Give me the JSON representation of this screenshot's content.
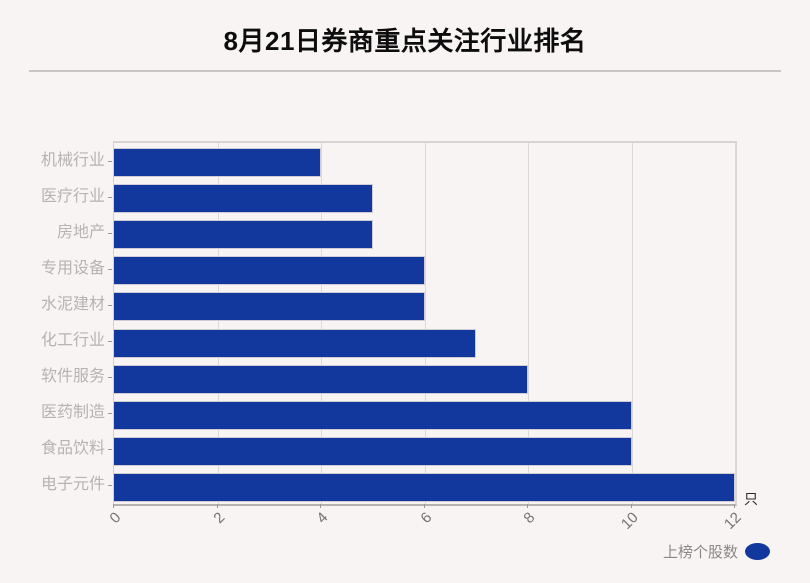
{
  "page": {
    "background_color": "#f7f4f3"
  },
  "chart_data": {
    "type": "bar",
    "orientation": "horizontal",
    "title": "8月21日券商重点关注行业排名",
    "categories": [
      "机械行业",
      "医疗行业",
      "房地产",
      "专用设备",
      "水泥建材",
      "化工行业",
      "软件服务",
      "医药制造",
      "食品饮料",
      "电子元件"
    ],
    "values": [
      4,
      5,
      5,
      6,
      6,
      7,
      8,
      10,
      10,
      12
    ],
    "series_name": "上榜个股数",
    "xlabel_unit": "只",
    "x_ticks": [
      0,
      2,
      4,
      6,
      8,
      10,
      12
    ],
    "xlim": [
      0,
      12
    ],
    "grid": true,
    "legend_position": "bottom-right",
    "bar_color": "#12389e",
    "category_label_color": "#b6b3b3",
    "tick_label_color": "#767272",
    "title_color": "#0d0d0d"
  }
}
